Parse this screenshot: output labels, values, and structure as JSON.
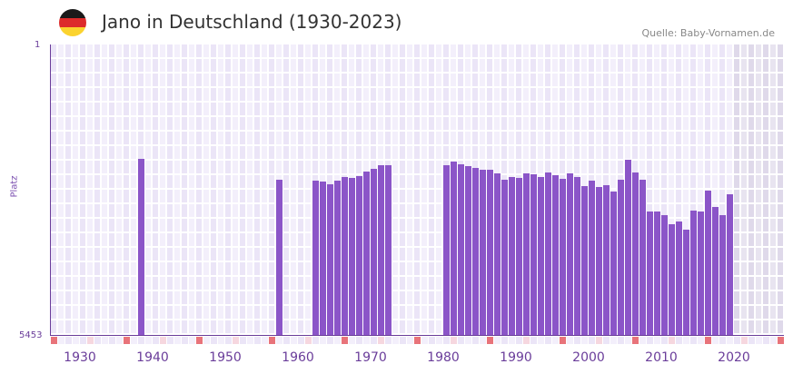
{
  "header": {
    "title": "Jano in Deutschland (1930-2023)",
    "source": "Quelle: Baby-Vornamen.de",
    "flag_colors": [
      "#1a1a1a",
      "#dd2b2b",
      "#fbd32f"
    ]
  },
  "colors": {
    "bar": "#8b55c8",
    "grid_a": "#f3effb",
    "grid_b": "#ebe5f7",
    "future_a": "#e8e4f0",
    "future_b": "#dfd9ea",
    "axis": "#6a3d9a",
    "decade_mark": "#e8737a",
    "half_mark": "#f6d7df"
  },
  "chart_data": {
    "type": "bar",
    "title": "Jano in Deutschland (1930-2023)",
    "xlabel": "",
    "ylabel": "Platz",
    "y_inverted": true,
    "ylim": [
      1,
      5453
    ],
    "ytick_labels": [
      "1",
      "5453"
    ],
    "xtick_labels": [
      "1930",
      "1940",
      "1950",
      "1960",
      "1970",
      "1980",
      "1990",
      "2000",
      "2010",
      "2020"
    ],
    "x_start": 1928,
    "x_end": 2028,
    "shaded_from": 2022,
    "x": [
      1940,
      1959,
      1964,
      1965,
      1966,
      1967,
      1968,
      1969,
      1970,
      1971,
      1972,
      1973,
      1974,
      1982,
      1983,
      1984,
      1985,
      1986,
      1987,
      1988,
      1989,
      1990,
      1991,
      1992,
      1993,
      1994,
      1995,
      1996,
      1997,
      1998,
      1999,
      2000,
      2001,
      2002,
      2003,
      2004,
      2005,
      2006,
      2007,
      2008,
      2009,
      2010,
      2011,
      2012,
      2013,
      2014,
      2015,
      2016,
      2017,
      2018,
      2019,
      2020,
      2021
    ],
    "values": [
      2146,
      2538,
      2555,
      2572,
      2623,
      2555,
      2487,
      2504,
      2470,
      2385,
      2334,
      2266,
      2266,
      2266,
      2198,
      2249,
      2283,
      2317,
      2351,
      2351,
      2419,
      2538,
      2487,
      2504,
      2419,
      2436,
      2487,
      2402,
      2453,
      2521,
      2419,
      2487,
      2657,
      2555,
      2674,
      2640,
      2759,
      2538,
      2163,
      2402,
      2538,
      3135,
      3135,
      3203,
      3374,
      3323,
      3476,
      3118,
      3135,
      2743,
      3050,
      3203,
      2811
    ]
  },
  "axis": {
    "y_top_label": "1",
    "y_bottom_label": "5453",
    "y_title": "Platz"
  }
}
